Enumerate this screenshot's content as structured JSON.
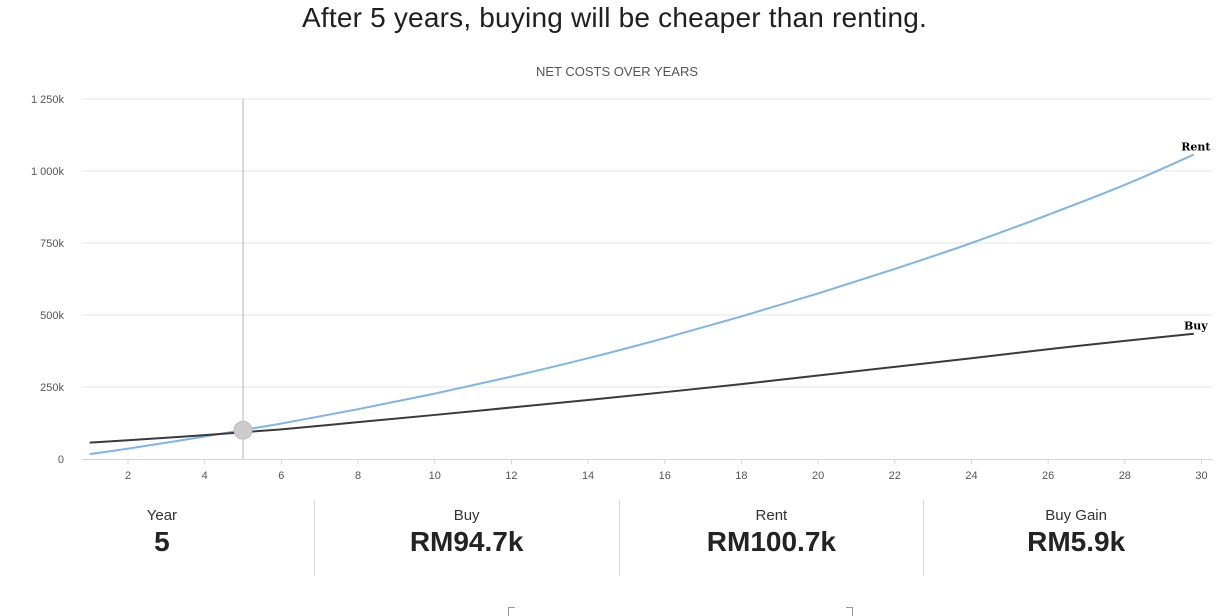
{
  "headline": "After 5 years, buying will be cheaper than renting.",
  "chart_data": {
    "type": "line",
    "title": "NET COSTS OVER YEARS",
    "xlim": [
      0.8,
      30.3
    ],
    "ylim": [
      0,
      1250000
    ],
    "x_ticks": [
      2,
      4,
      6,
      8,
      10,
      12,
      14,
      16,
      18,
      20,
      22,
      24,
      26,
      28,
      30
    ],
    "y_ticks": [
      0,
      250000,
      500000,
      750000,
      1000000,
      1250000
    ],
    "y_tick_labels": [
      "0",
      "250k",
      "500k",
      "750k",
      "1 000k",
      "1 250k"
    ],
    "grid": true,
    "crosshair_x": 5,
    "crosshair_y": 100000,
    "series": [
      {
        "name": "Rent",
        "color": "#7cb5ec",
        "x": [
          1,
          2,
          4,
          6,
          8,
          10,
          12,
          14,
          16,
          18,
          20,
          22,
          24,
          26,
          28,
          29.8
        ],
        "values": [
          17000,
          36000,
          78000,
          123000,
          173000,
          227000,
          286000,
          350000,
          420000,
          495000,
          575000,
          660000,
          750000,
          848000,
          952000,
          1057000
        ]
      },
      {
        "name": "Buy",
        "color": "#3a3a3a",
        "x": [
          1,
          2,
          4,
          6,
          8,
          10,
          12,
          14,
          16,
          18,
          20,
          22,
          24,
          26,
          28,
          29.8
        ],
        "values": [
          57000,
          65000,
          83000,
          103000,
          128000,
          153000,
          179000,
          205000,
          232000,
          260000,
          290000,
          320000,
          350000,
          381000,
          410000,
          435000
        ]
      }
    ]
  },
  "stats": [
    {
      "label": "Year",
      "value": "5"
    },
    {
      "label": "Buy",
      "value": "RM94.7k"
    },
    {
      "label": "Rent",
      "value": "RM100.7k"
    },
    {
      "label": "Buy Gain",
      "value": "RM5.9k"
    }
  ]
}
